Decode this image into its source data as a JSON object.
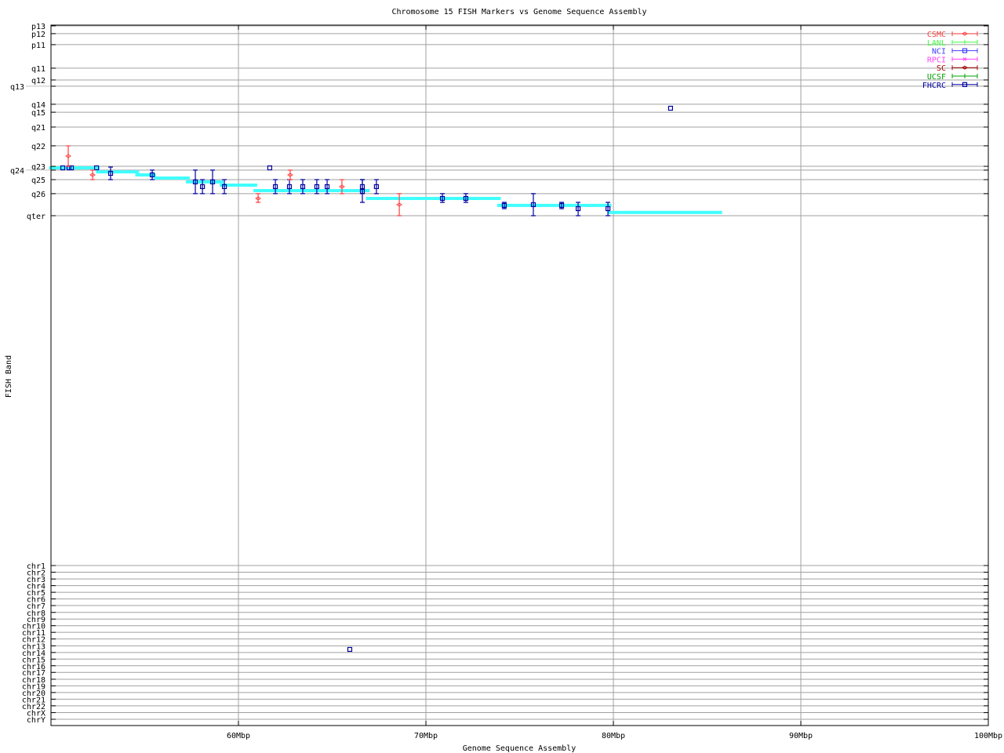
{
  "chart_data": {
    "type": "scatter",
    "title": "Chromosome 15 FISH Markers vs Genome Sequence Assembly",
    "xlabel": "Genome Sequence Assembly",
    "ylabel": "FISH Band",
    "xlim": [
      50,
      100
    ],
    "ylim": [
      -0.4,
      368.6
    ],
    "y_reversed": true,
    "grid": true,
    "legend_placement": "top-right",
    "x_ticks": [
      {
        "value": 60,
        "label": "60Mbp"
      },
      {
        "value": 70,
        "label": "70Mbp"
      },
      {
        "value": 80,
        "label": "80Mbp"
      },
      {
        "value": 90,
        "label": "90Mbp"
      },
      {
        "value": 100,
        "label": "100Mbp"
      }
    ],
    "y_ticks": [
      {
        "value": 0,
        "label": "p13"
      },
      {
        "value": 4.1,
        "label": "p12"
      },
      {
        "value": 9.9,
        "label": "p11"
      },
      {
        "value": 22.3,
        "label": "q11"
      },
      {
        "value": 28.5,
        "label": "q12"
      },
      {
        "value": 31.8,
        "label": "q13"
      },
      {
        "value": 41.3,
        "label": "q14"
      },
      {
        "value": 45.5,
        "label": "q15"
      },
      {
        "value": 53.3,
        "label": "q21"
      },
      {
        "value": 63.2,
        "label": "q22"
      },
      {
        "value": 74.0,
        "label": "q23"
      },
      {
        "value": 76.0,
        "label": "q24"
      },
      {
        "value": 81.0,
        "label": "q25"
      },
      {
        "value": 88.4,
        "label": "q26"
      },
      {
        "value": 100,
        "label": "qter"
      },
      {
        "value": 284.3,
        "label": "chr1"
      },
      {
        "value": 287.8,
        "label": "chr2"
      },
      {
        "value": 291.4,
        "label": "chr3"
      },
      {
        "value": 294.9,
        "label": "chr4"
      },
      {
        "value": 298.4,
        "label": "chr5"
      },
      {
        "value": 301.9,
        "label": "chr6"
      },
      {
        "value": 305.4,
        "label": "chr7"
      },
      {
        "value": 309.0,
        "label": "chr8"
      },
      {
        "value": 312.5,
        "label": "chr9"
      },
      {
        "value": 316.0,
        "label": "chr10"
      },
      {
        "value": 319.5,
        "label": "chr11"
      },
      {
        "value": 323.0,
        "label": "chr12"
      },
      {
        "value": 326.6,
        "label": "chr13"
      },
      {
        "value": 330.1,
        "label": "chr14"
      },
      {
        "value": 333.6,
        "label": "chr15"
      },
      {
        "value": 337.1,
        "label": "chr16"
      },
      {
        "value": 340.6,
        "label": "chr17"
      },
      {
        "value": 344.2,
        "label": "chr18"
      },
      {
        "value": 347.7,
        "label": "chr19"
      },
      {
        "value": 351.2,
        "label": "chr20"
      },
      {
        "value": 354.7,
        "label": "chr21"
      },
      {
        "value": 358.2,
        "label": "chr22"
      },
      {
        "value": 361.8,
        "label": "chrX"
      },
      {
        "value": 365.3,
        "label": "chrY"
      }
    ],
    "legend": [
      {
        "name": "CSMC",
        "color": "#ff4040",
        "marker": "diamond"
      },
      {
        "name": "LANL",
        "color": "#40ff40",
        "marker": "plus"
      },
      {
        "name": "NCI",
        "color": "#4040ff",
        "marker": "square"
      },
      {
        "name": "RPCI",
        "color": "#ff40ff",
        "marker": "cross"
      },
      {
        "name": "SC",
        "color": "#a00000",
        "marker": "diamond"
      },
      {
        "name": "UCSF",
        "color": "#00a000",
        "marker": "plus"
      },
      {
        "name": "FHCRC",
        "color": "#0000a0",
        "marker": "square"
      }
    ],
    "assembly_color": "#40ffff",
    "assembly_segments": [
      {
        "x": [
          49.9,
          52.6
        ],
        "y": 74.8
      },
      {
        "x": [
          52.4,
          54.7
        ],
        "y": 76.9
      },
      {
        "x": [
          54.5,
          55.6
        ],
        "y": 78.5
      },
      {
        "x": [
          55.5,
          57.4
        ],
        "y": 80.2
      },
      {
        "x": [
          57.2,
          59.2
        ],
        "y": 82.2
      },
      {
        "x": [
          59.0,
          61.0
        ],
        "y": 83.9
      },
      {
        "x": [
          60.8,
          67.0
        ],
        "y": 86.8
      },
      {
        "x": [
          66.8,
          74.0
        ],
        "y": 90.9
      },
      {
        "x": [
          73.8,
          79.9
        ],
        "y": 94.6
      },
      {
        "x": [
          79.7,
          85.8
        ],
        "y": 98.3
      }
    ],
    "series": [
      {
        "name": "FHCRC",
        "color": "#0000a0",
        "marker": "square",
        "points": [
          {
            "x": 50.63,
            "y": 74.8
          },
          {
            "x": 50.96,
            "y": 74.8
          },
          {
            "x": 51.09,
            "y": 74.8
          },
          {
            "x": 52.43,
            "y": 74.8
          },
          {
            "x": 53.18,
            "y": 77.7,
            "ylo": 74.4,
            "yhi": 81.0
          },
          {
            "x": 55.4,
            "y": 78.5,
            "ylo": 76.0,
            "yhi": 81.0
          },
          {
            "x": 57.7,
            "y": 82.2,
            "ylo": 76.0,
            "yhi": 88.4
          },
          {
            "x": 58.08,
            "y": 84.7,
            "ylo": 81.0,
            "yhi": 88.4
          },
          {
            "x": 58.62,
            "y": 82.2,
            "ylo": 76.0,
            "yhi": 88.4
          },
          {
            "x": 59.25,
            "y": 84.7,
            "ylo": 81.0,
            "yhi": 88.4
          },
          {
            "x": 61.67,
            "y": 74.8
          },
          {
            "x": 61.97,
            "y": 84.7,
            "ylo": 81.0,
            "yhi": 88.4
          },
          {
            "x": 62.72,
            "y": 84.7,
            "ylo": 81.0,
            "yhi": 88.4
          },
          {
            "x": 63.43,
            "y": 84.7,
            "ylo": 81.0,
            "yhi": 88.4
          },
          {
            "x": 64.18,
            "y": 84.7,
            "ylo": 81.0,
            "yhi": 88.4
          },
          {
            "x": 64.73,
            "y": 84.7,
            "ylo": 81.0,
            "yhi": 88.4
          },
          {
            "x": 66.61,
            "y": 84.7,
            "ylo": 81.0,
            "yhi": 88.4
          },
          {
            "x": 66.61,
            "y": 87.2,
            "ylo": 81.0,
            "yhi": 93.0
          },
          {
            "x": 67.36,
            "y": 84.7,
            "ylo": 81.0,
            "yhi": 88.4
          },
          {
            "x": 70.88,
            "y": 90.9,
            "ylo": 88.4,
            "yhi": 93.0
          },
          {
            "x": 72.13,
            "y": 90.9,
            "ylo": 88.4,
            "yhi": 93.0
          },
          {
            "x": 74.18,
            "y": 94.6,
            "ylo": 93.0,
            "yhi": 96.3
          },
          {
            "x": 75.73,
            "y": 94.2,
            "ylo": 88.4,
            "yhi": 100
          },
          {
            "x": 77.24,
            "y": 94.6,
            "ylo": 93.0,
            "yhi": 96.3
          },
          {
            "x": 78.12,
            "y": 96.3,
            "ylo": 93.0,
            "yhi": 100
          },
          {
            "x": 79.71,
            "y": 96.3,
            "ylo": 93.0,
            "yhi": 100
          },
          {
            "x": 83.05,
            "y": 43.4
          },
          {
            "x": 65.94,
            "y": 328.5
          }
        ]
      },
      {
        "name": "CSMC",
        "color": "#ff4040",
        "marker": "diamond",
        "points": [
          {
            "x": 50.92,
            "y": 68.6,
            "ylo": 63.2,
            "yhi": 74.0
          },
          {
            "x": 52.22,
            "y": 78.5,
            "ylo": 76.0,
            "yhi": 81.0
          },
          {
            "x": 61.05,
            "y": 90.9,
            "ylo": 88.4,
            "yhi": 93.0
          },
          {
            "x": 62.76,
            "y": 78.5,
            "ylo": 76.0,
            "yhi": 81.0
          },
          {
            "x": 65.52,
            "y": 84.7,
            "ylo": 81.0,
            "yhi": 88.4
          },
          {
            "x": 68.58,
            "y": 94.2,
            "ylo": 88.4,
            "yhi": 100
          }
        ]
      }
    ]
  }
}
